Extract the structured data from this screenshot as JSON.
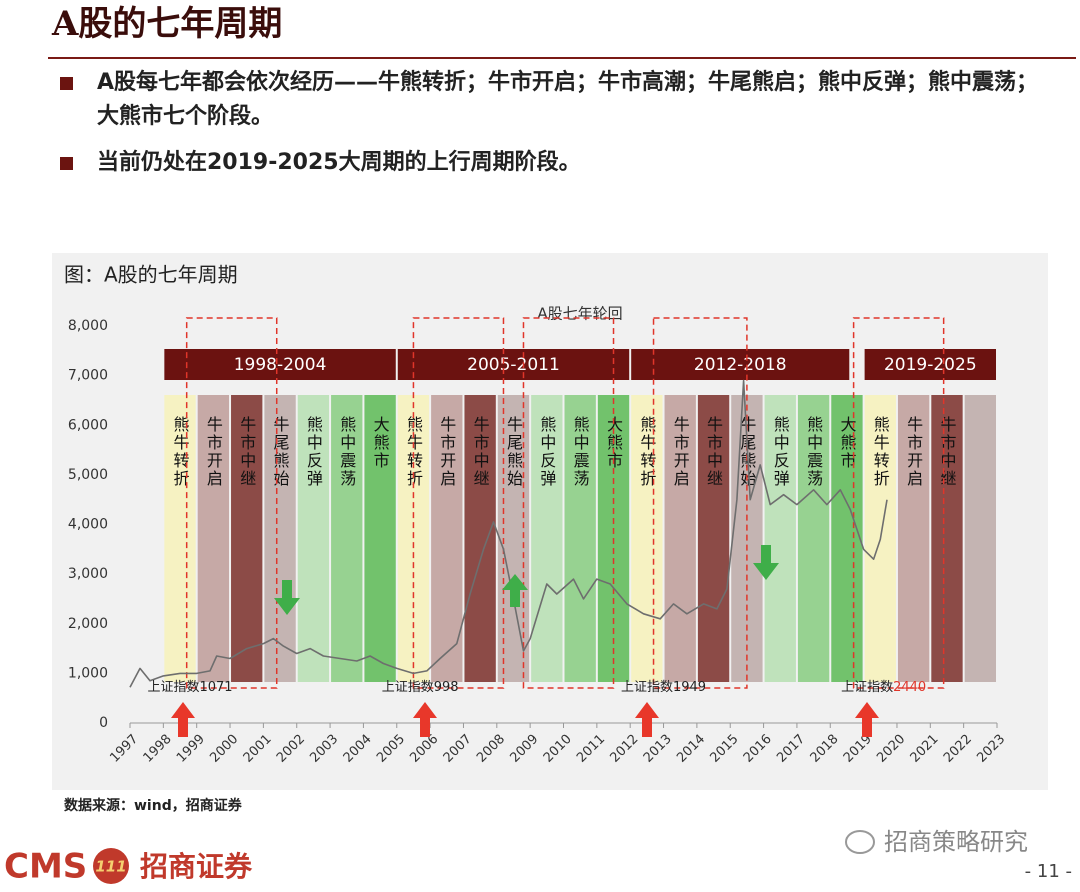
{
  "header": {
    "title": "A股的七年周期"
  },
  "bullets": [
    "A股每七年都会依次经历——牛熊转折；牛市开启；牛市高潮；牛尾熊启；熊中反弹；熊中震荡；大熊市七个阶段。",
    "当前仍处在2019-2025大周期的上行周期阶段。"
  ],
  "chart_data": {
    "type": "line",
    "title": "图：A股的七年周期",
    "subtitle": "A股七年轮回",
    "x": [
      1997.0,
      1997.3,
      1997.6,
      1998.0,
      1998.5,
      1999.0,
      1999.4,
      1999.6,
      2000.0,
      2000.5,
      2001.0,
      2001.3,
      2001.6,
      2002.0,
      2002.4,
      2002.8,
      2003.3,
      2003.8,
      2004.2,
      2004.6,
      2005.0,
      2005.5,
      2005.9,
      2006.3,
      2006.8,
      2007.2,
      2007.6,
      2007.9,
      2008.2,
      2008.5,
      2008.8,
      2009.0,
      2009.5,
      2009.8,
      2010.3,
      2010.6,
      2011.0,
      2011.4,
      2011.9,
      2012.4,
      2012.9,
      2013.3,
      2013.7,
      2014.2,
      2014.6,
      2014.9,
      2015.2,
      2015.4,
      2015.6,
      2015.9,
      2016.2,
      2016.6,
      2017.0,
      2017.5,
      2017.9,
      2018.3,
      2018.6,
      2019.0,
      2019.3,
      2019.5,
      2019.7
    ],
    "series": [
      {
        "name": "上证指数",
        "color": "#6e6e6e",
        "values": [
          720,
          1100,
          850,
          950,
          1000,
          1000,
          1050,
          1350,
          1300,
          1500,
          1600,
          1700,
          1550,
          1400,
          1500,
          1350,
          1300,
          1250,
          1350,
          1200,
          1100,
          1000,
          1050,
          1300,
          1600,
          2600,
          3500,
          4050,
          3500,
          2500,
          1450,
          1700,
          2800,
          2600,
          2900,
          2500,
          2900,
          2800,
          2400,
          2200,
          2100,
          2400,
          2200,
          2400,
          2300,
          2700,
          4500,
          6900,
          4500,
          5200,
          4400,
          4600,
          4400,
          4700,
          4400,
          4700,
          4300,
          3500,
          3300,
          3700,
          4500
        ]
      }
    ],
    "xlim": [
      1997,
      2023
    ],
    "xticks": [
      1997,
      1998,
      1999,
      2000,
      2001,
      2002,
      2003,
      2004,
      2005,
      2006,
      2007,
      2008,
      2009,
      2010,
      2011,
      2012,
      2013,
      2014,
      2015,
      2016,
      2017,
      2018,
      2019,
      2020,
      2021,
      2022,
      2023
    ],
    "ylim": [
      0,
      8000
    ],
    "yticks": [
      0,
      {
        "value": 1000,
        "label": "1,000"
      },
      {
        "value": 2000,
        "label": "2,000"
      },
      {
        "value": 3000,
        "label": "3,000"
      },
      {
        "value": 4000,
        "label": "4,000"
      },
      {
        "value": 5000,
        "label": "5,000"
      },
      {
        "value": 6000,
        "label": "6,000"
      },
      {
        "value": 7000,
        "label": "7,000"
      },
      {
        "value": 8000,
        "label": "8,000"
      }
    ],
    "grid": false,
    "cycles": [
      {
        "label": "1998-2004",
        "start": 1998,
        "end": 2005,
        "phases": [
          {
            "label": "熊牛转折",
            "color": "#f6f2c2"
          },
          {
            "label": "牛市开启",
            "color": "#c6a9a6"
          },
          {
            "label": "牛市中继",
            "color": "#8c4b47"
          },
          {
            "label": "牛尾熊始",
            "color": "#c4b4b2"
          },
          {
            "label": "熊中反弹",
            "color": "#bfe2bb"
          },
          {
            "label": "熊中震荡",
            "color": "#97d291"
          },
          {
            "label": "大熊市",
            "color": "#72c26c"
          }
        ]
      },
      {
        "label": "2005-2011",
        "start": 2005,
        "end": 2012,
        "phases": [
          {
            "label": "熊牛转折",
            "color": "#f6f2c2"
          },
          {
            "label": "牛市开启",
            "color": "#c6a9a6"
          },
          {
            "label": "牛市中继",
            "color": "#8c4b47"
          },
          {
            "label": "牛尾熊始",
            "color": "#c4b4b2"
          },
          {
            "label": "熊中反弹",
            "color": "#bfe2bb"
          },
          {
            "label": "熊中震荡",
            "color": "#97d291"
          },
          {
            "label": "大熊市",
            "color": "#72c26c"
          }
        ]
      },
      {
        "label": "2012-2018",
        "start": 2012,
        "end": 2018.6,
        "phases": [
          {
            "label": "熊牛转折",
            "color": "#f6f2c2"
          },
          {
            "label": "牛市开启",
            "color": "#c6a9a6"
          },
          {
            "label": "牛市中继",
            "color": "#8c4b47"
          },
          {
            "label": "牛尾熊始",
            "color": "#c4b4b2"
          },
          {
            "label": "熊中反弹",
            "color": "#bfe2bb"
          },
          {
            "label": "熊中震荡",
            "color": "#97d291"
          },
          {
            "label": "大熊市",
            "color": "#72c26c"
          }
        ]
      },
      {
        "label": "2019-2025",
        "start": 2019,
        "end": 2023,
        "phases": [
          {
            "label": "熊牛转折",
            "color": "#f6f2c2"
          },
          {
            "label": "牛市开启",
            "color": "#c6a9a6"
          },
          {
            "label": "牛市中继",
            "color": "#8c4b47"
          },
          {
            "label": null,
            "color": "#c4b4b2"
          }
        ]
      }
    ],
    "highlights": [
      [
        1998.7,
        2001.4
      ],
      [
        2005.5,
        2008.2
      ],
      [
        2008.8,
        2011.5
      ],
      [
        2012.7,
        2015.5
      ],
      [
        2018.7,
        2021.4
      ]
    ],
    "annotations": [
      {
        "label": "上证指数",
        "value": 1071,
        "x": 1998.8,
        "color": "#222222"
      },
      {
        "label": "上证指数",
        "value": 998,
        "x": 2005.7,
        "color": "#222222"
      },
      {
        "label": "上证指数",
        "value": 1949,
        "x": 2013.0,
        "color": "#222222"
      },
      {
        "label": "上证指数",
        "value": 2440,
        "x": 2019.6,
        "color": "#e0352a"
      }
    ],
    "source": "数据来源：wind，招商证券"
  },
  "footer": {
    "logo_text": "CMS",
    "logo_badge": "111",
    "company": "招商证券",
    "watermark": "招商策略研究",
    "page": "- 11 -"
  }
}
